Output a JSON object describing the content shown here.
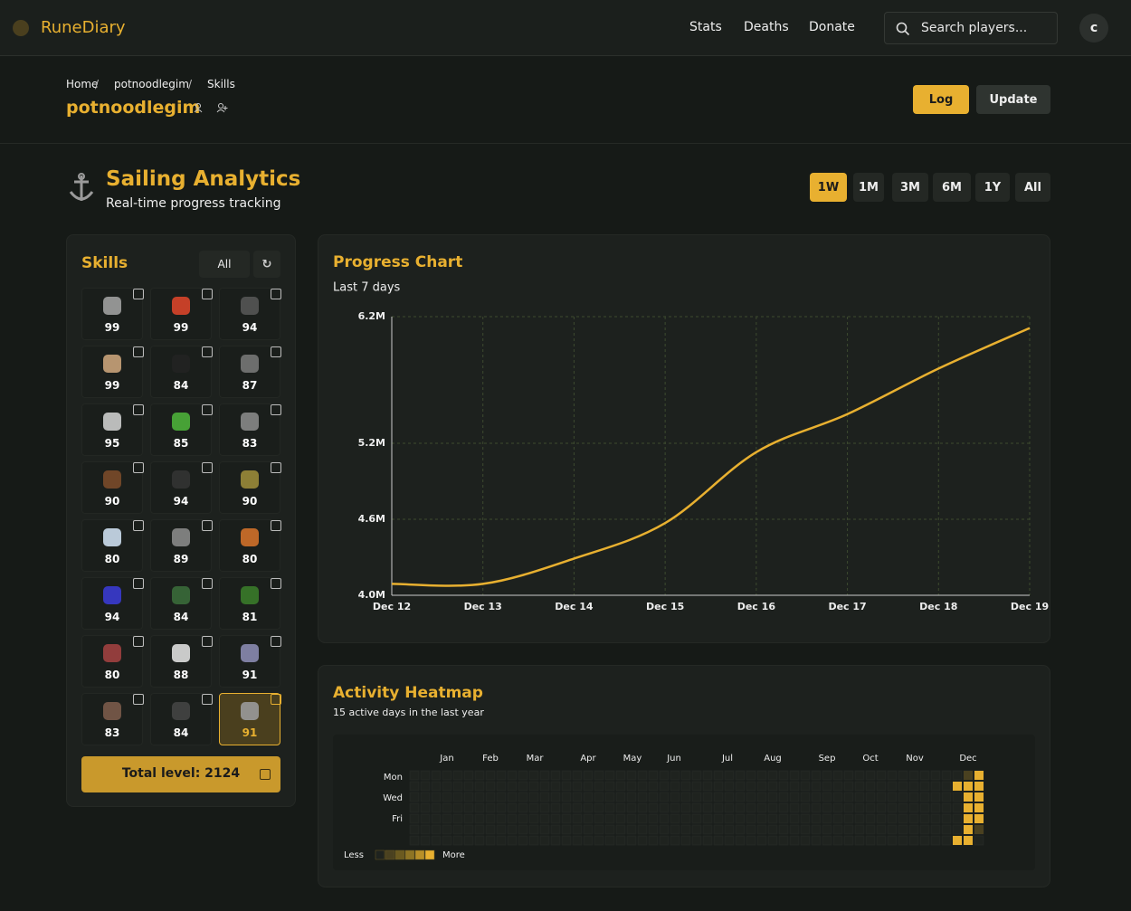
{
  "nav": {
    "brand": "RuneDiary",
    "links": [
      "Stats",
      "Deaths",
      "Donate"
    ],
    "search_placeholder": "Search players...",
    "avatar": "c"
  },
  "breadcrumb": [
    "Home",
    "potnoodlegim",
    "Skills"
  ],
  "player": "potnoodlegim",
  "actions": [
    "Log",
    "Update"
  ],
  "analytics": {
    "title": "Sailing Analytics",
    "subtitle": "Real-time progress tracking",
    "ranges": [
      "1W",
      "1M",
      "3M",
      "6M",
      "1Y",
      "All"
    ],
    "active_range": 0
  },
  "skills": {
    "title": "Skills",
    "filter": "All",
    "levels": [
      99,
      99,
      94,
      99,
      84,
      87,
      95,
      85,
      83,
      90,
      94,
      90,
      80,
      89,
      80,
      94,
      84,
      81,
      80,
      88,
      91,
      83,
      84,
      91
    ],
    "selected": 23,
    "total": "Total level: 2124"
  },
  "progress_chart": {
    "type": "line",
    "title": "Progress Chart",
    "subtitle": "Last 7 days",
    "categories": [
      "Dec 12",
      "Dec 13",
      "Dec 14",
      "Dec 15",
      "Dec 16",
      "Dec 17",
      "Dec 18",
      "Dec 19"
    ],
    "values": [
      4090000,
      4090000,
      4290000,
      4570000,
      5130000,
      5430000,
      5790000,
      6110000
    ],
    "color": "#e8b030",
    "ylim": [
      4000000,
      6200000
    ],
    "yticks": [
      {
        "value": 4000000,
        "label": "4.0M"
      },
      {
        "value": 4600000,
        "label": "4.6M"
      },
      {
        "value": 5200000,
        "label": "5.2M"
      },
      {
        "value": 6200000,
        "label": "6.2M"
      }
    ],
    "grid": true
  },
  "heatmap": {
    "title": "Activity Heatmap",
    "subtitle": "15 active days in the last year",
    "months": [
      "Jan",
      "Feb",
      "Mar",
      "Apr",
      "May",
      "Jun",
      "Jul",
      "Aug",
      "Sep",
      "Oct",
      "Nov",
      "Dec"
    ],
    "days": [
      "Mon",
      "Wed",
      "Fri"
    ],
    "cells": [
      {
        "week": 50,
        "day": 1,
        "level": 5
      },
      {
        "week": 50,
        "day": 6,
        "level": 5
      },
      {
        "week": 51,
        "day": 0,
        "level": 1
      },
      {
        "week": 51,
        "day": 1,
        "level": 5
      },
      {
        "week": 51,
        "day": 2,
        "level": 5
      },
      {
        "week": 51,
        "day": 3,
        "level": 5
      },
      {
        "week": 51,
        "day": 4,
        "level": 5
      },
      {
        "week": 51,
        "day": 5,
        "level": 5
      },
      {
        "week": 51,
        "day": 6,
        "level": 5
      },
      {
        "week": 52,
        "day": 0,
        "level": 5
      },
      {
        "week": 52,
        "day": 1,
        "level": 5
      },
      {
        "week": 52,
        "day": 2,
        "level": 5
      },
      {
        "week": 52,
        "day": 3,
        "level": 5
      },
      {
        "week": 52,
        "day": 4,
        "level": 5
      },
      {
        "week": 52,
        "day": 5,
        "level": 1
      }
    ],
    "legend_low": "Less",
    "legend_high": "More"
  }
}
